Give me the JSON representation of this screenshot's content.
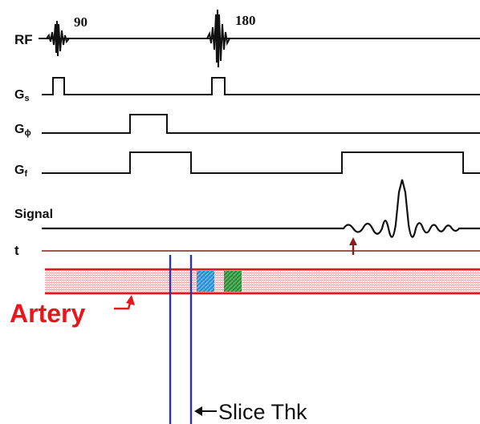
{
  "rows": {
    "rf": "RF",
    "gs_main": "G",
    "gs_sub": "s",
    "gphi_main": "G",
    "gphi_sub": "ϕ",
    "gf_main": "G",
    "gf_sub": "f",
    "signal": "Signal",
    "t": "t"
  },
  "pulses": {
    "first": "90",
    "second": "180"
  },
  "annotations": {
    "artery": "Artery",
    "slice": "Slice Thk"
  },
  "colors": {
    "waveform": "#111111",
    "t_axis": "#8b1a1a",
    "echo_arrow": "#8b1a1a",
    "artery": "#e8151c",
    "artery_hatch": "#f4a3a6",
    "slice_lines": "#2a35a8",
    "blue_spin": "#2c8fd6",
    "green_spin": "#2f8d3a"
  }
}
